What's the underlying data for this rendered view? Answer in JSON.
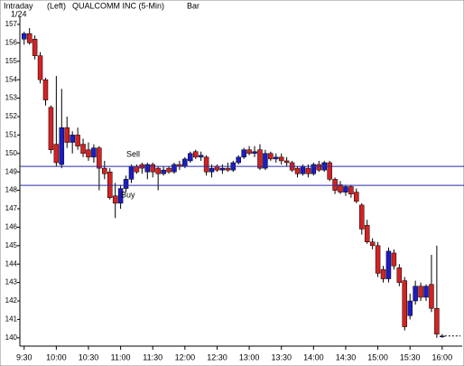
{
  "chart_data": {
    "type": "candlestick",
    "header": [
      "Intraday",
      "(Left)",
      "QUALCOMM INC (5-Min)",
      "Bar"
    ],
    "date": "1/24",
    "x": [
      0,
      5,
      10,
      15,
      20,
      25,
      30,
      35,
      40,
      45,
      50,
      55,
      60,
      65,
      70,
      75,
      80,
      85,
      90,
      95,
      100,
      105,
      110,
      115,
      120,
      125,
      130,
      135,
      140,
      145,
      150,
      155,
      160,
      165,
      170,
      175,
      180,
      185,
      190,
      195,
      200,
      205,
      210,
      215,
      220,
      225,
      230,
      235,
      240,
      245,
      250,
      255,
      260,
      265,
      270,
      275,
      280,
      285,
      290,
      295,
      300,
      305,
      310,
      315,
      320,
      325,
      330,
      335,
      340,
      345,
      350,
      355,
      360,
      365,
      370,
      375,
      380,
      385,
      390
    ],
    "open": [
      156.2,
      156.5,
      156.2,
      155.3,
      154.0,
      152.5,
      150.5,
      149.4,
      151.4,
      150.6,
      151.0,
      150.5,
      150.2,
      149.8,
      150.3,
      149.2,
      149.0,
      147.7,
      147.3,
      148.1,
      148.6,
      149.3,
      149.4,
      149.0,
      149.4,
      149.2,
      148.9,
      149.2,
      149.0,
      149.4,
      149.3,
      149.6,
      150.1,
      149.8,
      149.8,
      149.0,
      149.3,
      149.1,
      149.2,
      149.1,
      149.5,
      149.8,
      150.2,
      150.0,
      150.2,
      149.2,
      150.0,
      149.7,
      149.8,
      149.6,
      149.5,
      149.2,
      148.9,
      149.2,
      148.9,
      149.4,
      149.1,
      149.5,
      148.6,
      148.3,
      147.9,
      148.2,
      147.9,
      147.2,
      146.1,
      145.2,
      145.0,
      143.7,
      143.2,
      144.6,
      143.8,
      143.1,
      141.2,
      142.0,
      142.8,
      142.2,
      142.9,
      141.6,
      140.1
    ],
    "high": [
      156.6,
      156.8,
      156.4,
      155.5,
      154.1,
      152.6,
      154.2,
      153.5,
      152.0,
      151.2,
      151.4,
      150.8,
      150.6,
      150.5,
      150.4,
      149.6,
      149.2,
      148.4,
      148.3,
      148.8,
      149.4,
      149.4,
      149.5,
      149.5,
      149.5,
      149.3,
      149.3,
      149.3,
      149.5,
      149.6,
      149.8,
      150.1,
      150.2,
      150.1,
      149.9,
      149.4,
      149.4,
      149.4,
      149.5,
      149.6,
      149.9,
      150.3,
      150.4,
      150.4,
      150.5,
      150.2,
      150.1,
      150.0,
      150.0,
      149.8,
      149.6,
      149.3,
      149.4,
      149.4,
      149.5,
      149.6,
      149.6,
      149.6,
      148.7,
      148.5,
      148.3,
      148.3,
      148.1,
      147.3,
      146.4,
      145.4,
      145.2,
      143.9,
      144.9,
      144.8,
      144.0,
      143.3,
      142.4,
      143.1,
      143.0,
      142.9,
      144.5,
      145.0,
      140.2
    ],
    "low": [
      155.9,
      155.9,
      155.1,
      153.8,
      152.6,
      150.0,
      149.3,
      149.2,
      150.3,
      150.0,
      150.2,
      149.8,
      149.6,
      149.5,
      148.0,
      148.6,
      147.5,
      146.5,
      147.0,
      147.9,
      148.4,
      148.9,
      148.9,
      148.6,
      148.7,
      148.0,
      148.8,
      148.9,
      148.9,
      149.1,
      149.2,
      149.5,
      149.7,
      149.6,
      148.8,
      148.7,
      149.0,
      148.9,
      149.0,
      149.0,
      149.4,
      149.7,
      149.9,
      149.8,
      149.1,
      149.1,
      149.6,
      149.5,
      149.4,
      149.3,
      149.0,
      148.7,
      148.8,
      148.7,
      148.8,
      149.0,
      149.0,
      148.5,
      147.8,
      147.8,
      147.7,
      147.6,
      147.3,
      145.6,
      145.1,
      144.8,
      143.3,
      143.0,
      143.0,
      143.7,
      142.8,
      140.4,
      141.0,
      141.8,
      142.0,
      142.0,
      141.4,
      140.0,
      140.0
    ],
    "close": [
      156.5,
      156.0,
      155.3,
      154.0,
      152.9,
      150.2,
      149.5,
      151.4,
      150.6,
      151.0,
      150.4,
      150.0,
      149.8,
      150.3,
      149.2,
      148.9,
      147.6,
      147.3,
      148.1,
      148.6,
      149.3,
      149.0,
      149.2,
      149.4,
      149.0,
      148.9,
      149.1,
      149.0,
      149.4,
      149.3,
      149.7,
      150.0,
      149.8,
      149.9,
      149.0,
      149.2,
      149.1,
      149.2,
      149.1,
      149.5,
      149.8,
      150.2,
      150.0,
      150.1,
      149.2,
      150.0,
      149.7,
      149.8,
      149.6,
      149.5,
      149.1,
      148.9,
      149.3,
      148.9,
      149.4,
      149.1,
      149.5,
      148.6,
      148.0,
      147.9,
      148.2,
      147.8,
      147.4,
      145.9,
      145.2,
      145.0,
      143.5,
      143.2,
      144.7,
      143.9,
      143.0,
      140.6,
      142.0,
      142.8,
      142.2,
      142.8,
      141.6,
      140.2,
      140.1
    ],
    "up_color": "#1c1cc4",
    "down_color": "#d42222",
    "levels": [
      {
        "label": "Sell",
        "value": 149.3,
        "color": "#2a2aa8"
      },
      {
        "label": "Buy",
        "value": 148.27,
        "color": "#2a2aa8"
      }
    ],
    "xlim": [
      -4,
      407
    ],
    "ylim": [
      139.55,
      157.44
    ],
    "xticks": [
      {
        "value": 0,
        "label": "9:30"
      },
      {
        "value": 30,
        "label": "10:00"
      },
      {
        "value": 60,
        "label": "10:30"
      },
      {
        "value": 90,
        "label": "11:00"
      },
      {
        "value": 120,
        "label": "11:30"
      },
      {
        "value": 150,
        "label": "12:00"
      },
      {
        "value": 180,
        "label": "12:30"
      },
      {
        "value": 210,
        "label": "13:00"
      },
      {
        "value": 240,
        "label": "13:30"
      },
      {
        "value": 270,
        "label": "14:00"
      },
      {
        "value": 300,
        "label": "14:30"
      },
      {
        "value": 330,
        "label": "15:00"
      },
      {
        "value": 360,
        "label": "15:30"
      },
      {
        "value": 390,
        "label": "16:00"
      }
    ],
    "yticks": [
      140,
      141,
      142,
      143,
      144,
      145,
      146,
      147,
      148,
      149,
      150,
      151,
      152,
      153,
      154,
      155,
      156,
      157
    ]
  }
}
